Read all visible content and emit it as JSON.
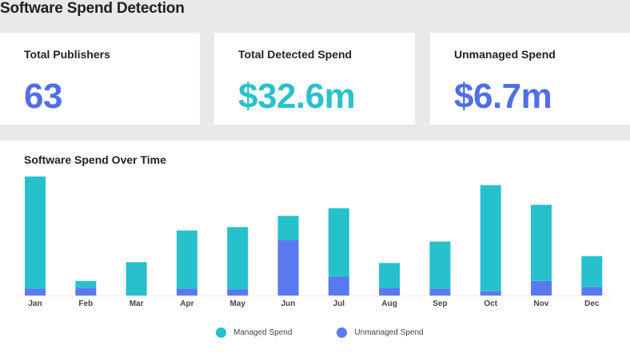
{
  "page": {
    "title": "Software Spend Detection"
  },
  "kpis": [
    {
      "label": "Total Publishers",
      "value": "63",
      "color": "#4f6ee8"
    },
    {
      "label": "Total Detected Spend",
      "value": "$32.6m",
      "color": "#2bc1c9"
    },
    {
      "label": "Unmanaged Spend",
      "value": "$6.7m",
      "color": "#4f6ee8"
    }
  ],
  "colors": {
    "managed": "#26c1cb",
    "unmanaged": "#5a79f0"
  },
  "chart_data": {
    "type": "bar",
    "stacked": true,
    "title": "Software Spend Over Time",
    "xlabel": "",
    "ylabel": "",
    "ylim": [
      0,
      140
    ],
    "grid": false,
    "legend_position": "bottom",
    "categories": [
      "Jan",
      "Feb",
      "Mar",
      "Apr",
      "May",
      "Jun",
      "Jul",
      "Aug",
      "Sep",
      "Oct",
      "Nov",
      "Dec"
    ],
    "series": [
      {
        "name": "Managed Spend",
        "values": [
          131,
          8,
          39,
          68,
          73,
          28,
          80,
          29,
          55,
          124,
          89,
          36
        ]
      },
      {
        "name": "Unmanaged Spend",
        "values": [
          8,
          9,
          0,
          8,
          7,
          65,
          22,
          9,
          8,
          5,
          17,
          10
        ]
      }
    ]
  }
}
